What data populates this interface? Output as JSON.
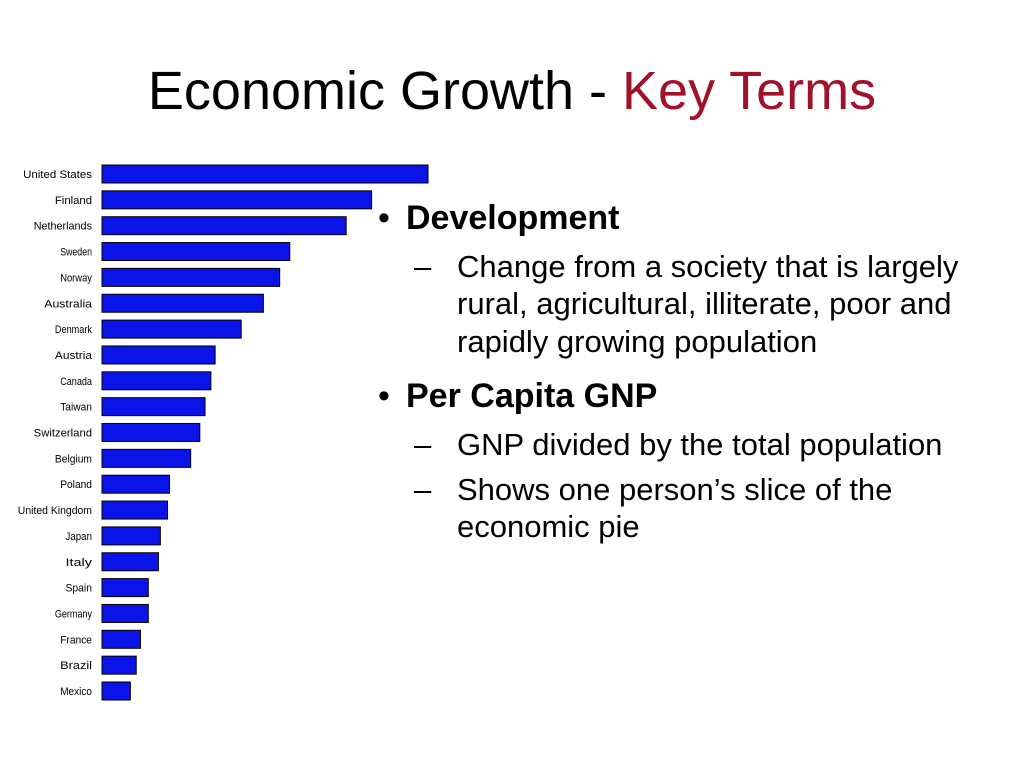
{
  "title": {
    "main": "Economic Growth - ",
    "accent": "Key Terms",
    "accent_color": "#a0122a"
  },
  "chart_data": {
    "type": "bar",
    "orientation": "horizontal",
    "bar_color": "#0a14e8",
    "categories": [
      "United States",
      "Finland",
      "Netherlands",
      "Sweden",
      "Norway",
      "Australia",
      "Denmark",
      "Austria",
      "Canada",
      "Taiwan",
      "Switzerland",
      "Belgium",
      "Poland",
      "United Kingdom",
      "Japan",
      "Italy",
      "Spain",
      "Germany",
      "France",
      "Brazil",
      "Mexico"
    ],
    "values": [
      100,
      82.7,
      74.9,
      57.6,
      54.5,
      49.5,
      42.7,
      34.7,
      33.4,
      31.6,
      30.0,
      27.2,
      20.7,
      20.1,
      17.9,
      17.3,
      14.2,
      14.2,
      11.8,
      10.5,
      8.7
    ],
    "value_units_note_shown": false
  },
  "terms": [
    {
      "bullet": "•",
      "heading": "Development",
      "points": [
        {
          "dash": "–",
          "text": "Change from a society that is largely rural, agricultural, illiterate, poor and rapidly growing population"
        }
      ]
    },
    {
      "bullet": "•",
      "heading": "Per Capita GNP",
      "points": [
        {
          "dash": "–",
          "text": "GNP divided by the total population"
        },
        {
          "dash": "–",
          "text": "Shows one person’s slice of the economic pie"
        }
      ]
    }
  ]
}
